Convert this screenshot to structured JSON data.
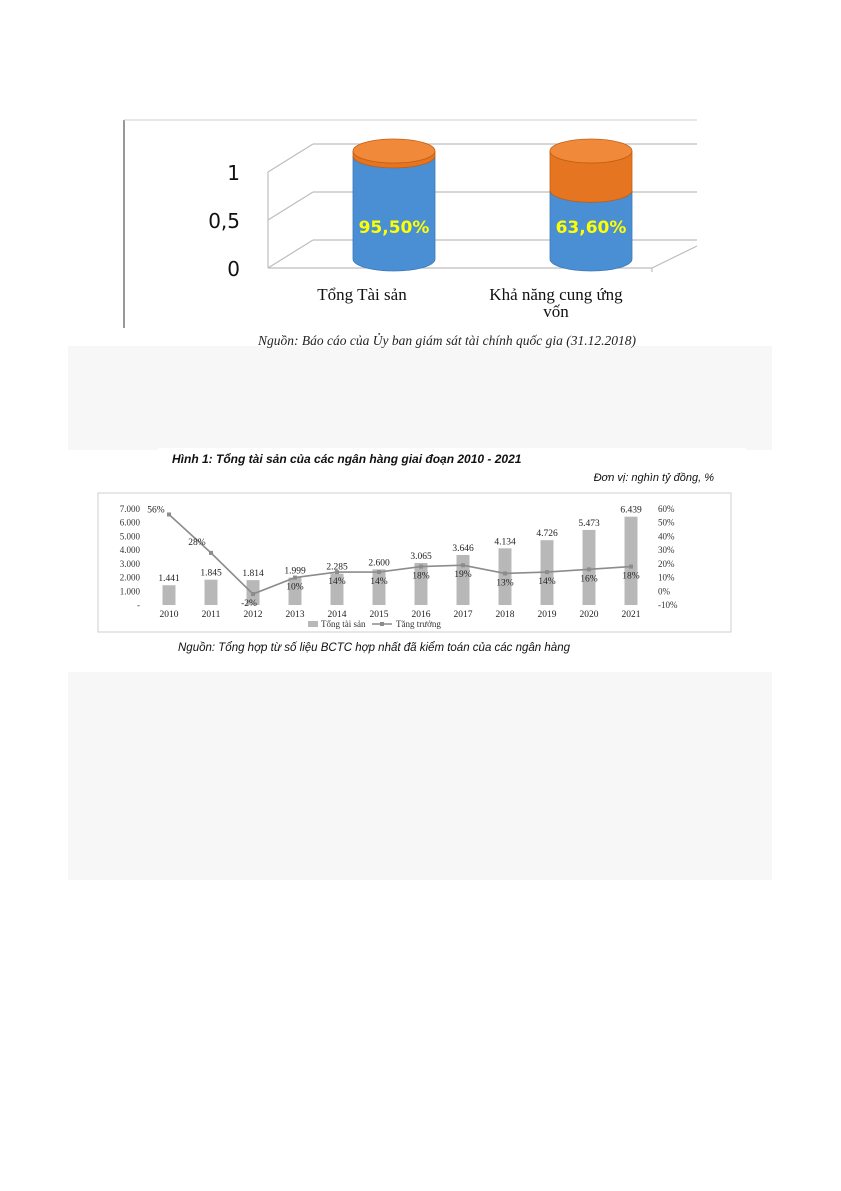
{
  "chart_data": [
    {
      "type": "bar",
      "subtype": "3d-stacked-cylinder",
      "categories": [
        "Tổng Tài sản",
        "Khả năng cung ứng vốn"
      ],
      "series": [
        {
          "values": [
            0.955,
            0.636
          ],
          "labels": [
            "95,50%",
            "63,60%"
          ],
          "color": "#4a8fd4"
        },
        {
          "values": [
            0.045,
            0.364
          ],
          "color": "#e57520"
        }
      ],
      "yticks": [
        "0",
        "0,5",
        "1"
      ],
      "ylim": [
        0,
        1
      ],
      "grid": true,
      "label_color": "#ffff00",
      "source": "Nguồn: Báo cáo của Ủy ban giám sát tài chính quốc gia (31.12.2018)"
    },
    {
      "type": "bar",
      "subtype": "bar-line-dual-axis",
      "title": "Hình 1: Tổng tài sản của các ngân hàng giai đoạn 2010 - 2021",
      "unit": "Đơn vị: nghìn tỷ đồng, %",
      "categories": [
        "2010",
        "2011",
        "2012",
        "2013",
        "2014",
        "2015",
        "2016",
        "2017",
        "2018",
        "2019",
        "2020",
        "2021"
      ],
      "series": [
        {
          "name": "Tổng tài sản",
          "kind": "bar",
          "color": "#b8b8b8",
          "values": [
            1441,
            1845,
            1814,
            1999,
            2285,
            2600,
            3065,
            3646,
            4134,
            4726,
            5473,
            6439
          ],
          "labels": [
            "1.441",
            "1.845",
            "1.814",
            "1.999",
            "2.285",
            "2.600",
            "3.065",
            "3.646",
            "4.134",
            "4.726",
            "5.473",
            "6.439"
          ]
        },
        {
          "name": "Tăng trưởng",
          "kind": "line",
          "color": "#8c8c8c",
          "axis": "right",
          "values": [
            56,
            28,
            -2,
            10,
            14,
            14,
            18,
            19,
            13,
            14,
            16,
            18
          ],
          "labels": [
            "56%",
            "28%",
            "-2%",
            "10%",
            "14%",
            "14%",
            "18%",
            "19%",
            "13%",
            "14%",
            "16%",
            "18%"
          ]
        }
      ],
      "ylim": [
        0,
        7000
      ],
      "yticks": [
        "-",
        "1.000",
        "2.000",
        "3.000",
        "4.000",
        "5.000",
        "6.000",
        "7.000"
      ],
      "y2lim": [
        -10,
        60
      ],
      "y2ticks": [
        "-10%",
        "0%",
        "10%",
        "20%",
        "30%",
        "40%",
        "50%",
        "60%"
      ],
      "legend": "bottom",
      "source": "Nguồn: Tổng hợp từ số liệu BCTC hợp nhất đã kiểm toán của các ngân hàng"
    }
  ]
}
